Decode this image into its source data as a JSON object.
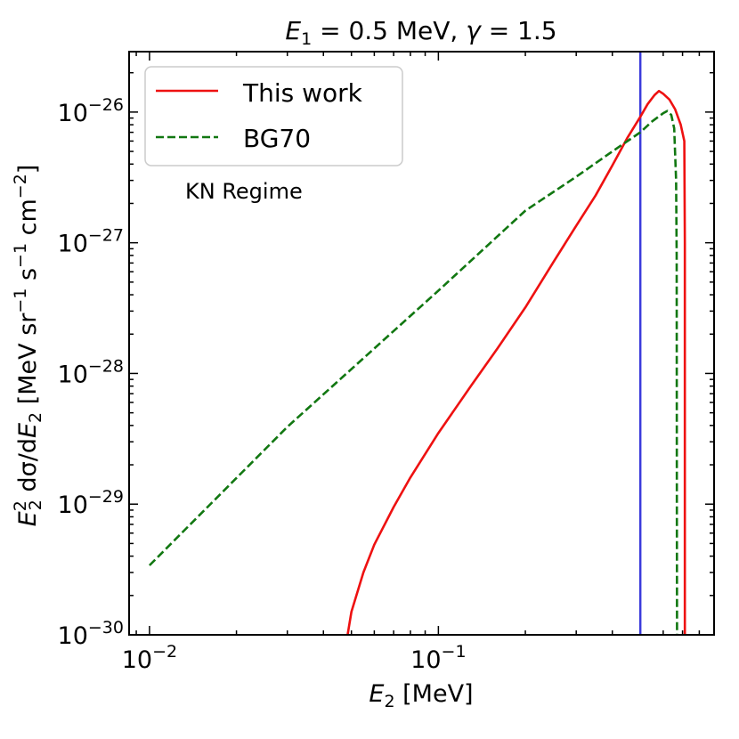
{
  "chart_data": {
    "type": "line",
    "title": "E₁ = 0.5 MeV, γ = 1.5",
    "title_parts": {
      "e1": "E",
      "e1_sub": "1",
      "e1_val": " = 0.5 MeV, ",
      "gamma": "γ",
      "gamma_val": " = 1.5"
    },
    "xlabel": "E₂ [MeV]",
    "xlabel_parts": {
      "var": "E",
      "sub": "2",
      "unit": " [MeV]"
    },
    "ylabel": "E₂² dσ/dE₂ [MeV sr⁻¹ s⁻¹ cm⁻²]",
    "ylabel_parts": {
      "e": "E",
      "e_sup": "2",
      "e_sub": "2",
      "dsig": " dσ/d",
      "e2": "E",
      "e2_sub": "2",
      "u1": " [MeV sr",
      "sup1": "−1",
      "u2": " s",
      "sup2": "−1",
      "u3": " cm",
      "sup3": "−2",
      "u4": "]"
    },
    "xscale": "log",
    "yscale": "log",
    "xlim": [
      0.0085,
      0.9
    ],
    "ylim": [
      1e-30,
      2.9e-26
    ],
    "x_ticks": [
      {
        "value": 0.01,
        "base": "10",
        "exp": "−2"
      },
      {
        "value": 0.1,
        "base": "10",
        "exp": "−1"
      }
    ],
    "y_ticks": [
      {
        "value": 1e-30,
        "base": "10",
        "exp": "−30"
      },
      {
        "value": 1e-29,
        "base": "10",
        "exp": "−29"
      },
      {
        "value": 1e-28,
        "base": "10",
        "exp": "−28"
      },
      {
        "value": 1e-27,
        "base": "10",
        "exp": "−27"
      },
      {
        "value": 1e-26,
        "base": "10",
        "exp": "−26"
      }
    ],
    "vline": {
      "x": 0.5,
      "color": "#3b3bdb"
    },
    "annotation": "KN Regime",
    "legend_position": "top-left",
    "series": [
      {
        "name": "This work",
        "color": "#ee1111",
        "style": "solid",
        "points": [
          [
            0.0485,
            1e-30
          ],
          [
            0.05,
            1.5e-30
          ],
          [
            0.055,
            3e-30
          ],
          [
            0.06,
            4.9e-30
          ],
          [
            0.07,
            9.5e-30
          ],
          [
            0.08,
            1.6e-29
          ],
          [
            0.1,
            3.5e-29
          ],
          [
            0.13,
            8.1e-29
          ],
          [
            0.16,
            1.55e-28
          ],
          [
            0.2,
            3.2e-28
          ],
          [
            0.25,
            7.1e-28
          ],
          [
            0.3,
            1.35e-27
          ],
          [
            0.35,
            2.3e-27
          ],
          [
            0.4,
            3.9e-27
          ],
          [
            0.45,
            6.3e-27
          ],
          [
            0.5,
            9.2e-27
          ],
          [
            0.53,
            1.15e-26
          ],
          [
            0.56,
            1.35e-26
          ],
          [
            0.58,
            1.45e-26
          ],
          [
            0.6,
            1.38e-26
          ],
          [
            0.63,
            1.25e-26
          ],
          [
            0.66,
            1.05e-26
          ],
          [
            0.69,
            8e-27
          ],
          [
            0.71,
            6e-27
          ],
          [
            0.713,
            1e-27
          ],
          [
            0.713,
            1e-30
          ]
        ]
      },
      {
        "name": "BG70",
        "color": "#117711",
        "style": "dashed",
        "points": [
          [
            0.01,
            3.4e-30
          ],
          [
            0.03,
            3.9e-29
          ],
          [
            0.1,
            4.3e-28
          ],
          [
            0.2,
            1.76e-27
          ],
          [
            0.3,
            3.2e-27
          ],
          [
            0.4,
            5e-27
          ],
          [
            0.5,
            7e-27
          ],
          [
            0.55,
            8.5e-27
          ],
          [
            0.6,
            9.8e-27
          ],
          [
            0.62,
            1.02e-26
          ],
          [
            0.64,
            9.5e-27
          ],
          [
            0.655,
            7.5e-27
          ],
          [
            0.665,
            3e-27
          ],
          [
            0.668,
            8e-28
          ],
          [
            0.669,
            1e-29
          ],
          [
            0.67,
            1e-30
          ]
        ]
      }
    ]
  }
}
